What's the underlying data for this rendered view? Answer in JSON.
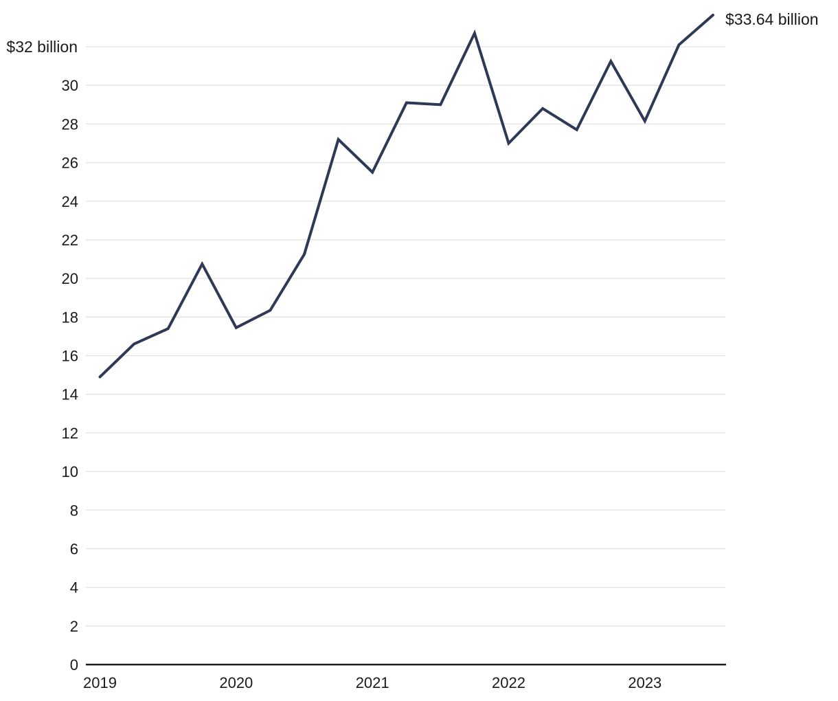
{
  "chart_data": {
    "type": "line",
    "title": "",
    "x": [
      "Q1 2019",
      "Q2 2019",
      "Q3 2019",
      "Q4 2019",
      "Q1 2020",
      "Q2 2020",
      "Q3 2020",
      "Q4 2020",
      "Q1 2021",
      "Q2 2021",
      "Q3 2021",
      "Q4 2021",
      "Q1 2022",
      "Q2 2022",
      "Q3 2022",
      "Q4 2022",
      "Q1 2023",
      "Q2 2023",
      "Q3 2023"
    ],
    "series": [
      {
        "name": "quarterly value in $ billions",
        "values": [
          14.9,
          16.6,
          17.4,
          20.75,
          17.45,
          18.35,
          21.25,
          27.2,
          25.5,
          29.1,
          29.0,
          32.7,
          27.0,
          28.8,
          27.7,
          31.25,
          28.15,
          32.1,
          33.64
        ]
      }
    ],
    "x_tick_labels": [
      "2019",
      "2020",
      "2021",
      "2022",
      "2023"
    ],
    "x_tick_point_indices": [
      0,
      4,
      8,
      12,
      16
    ],
    "y_ticks": [
      0,
      2,
      4,
      6,
      8,
      10,
      12,
      14,
      16,
      18,
      20,
      22,
      24,
      26,
      28,
      30
    ],
    "y_top_gridline_value": 32,
    "y_top_label": "$32 billion",
    "end_label": "$33.64 billion",
    "ylim": [
      0,
      33.64
    ],
    "grid": true,
    "legend": "none",
    "colors": {
      "line": "#2e3956",
      "grid": "#e2e2e2",
      "axis": "#1a1a1a",
      "text": "#1a1a1a",
      "background": "#ffffff"
    }
  }
}
